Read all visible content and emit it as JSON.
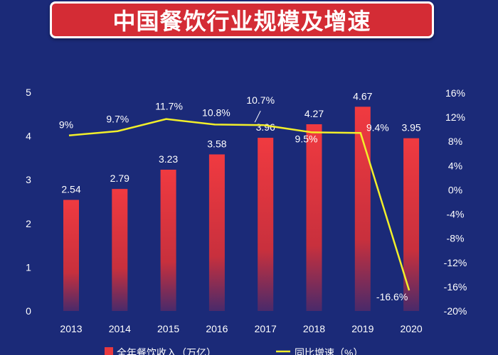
{
  "title": "中国餐饮行业规模及增速",
  "colors": {
    "background": "#1b2a78",
    "bar": "#e8393f",
    "line": "#f2ef2a",
    "title_box": "#d42c35"
  },
  "chart_data": {
    "type": "bar",
    "categories": [
      "2013",
      "2014",
      "2015",
      "2016",
      "2017",
      "2018",
      "2019",
      "2020"
    ],
    "series": [
      {
        "name": "全年餐饮收入（万亿）",
        "type": "bar",
        "axis": "left",
        "values": [
          2.54,
          2.79,
          3.23,
          3.58,
          3.96,
          4.27,
          4.67,
          3.95
        ],
        "labels": [
          "2.54",
          "2.79",
          "3.23",
          "3.58",
          "3.96",
          "4.27",
          "4.67",
          "3.95"
        ]
      },
      {
        "name": "同比增速（%）",
        "type": "line",
        "axis": "right",
        "values": [
          9,
          9.7,
          11.7,
          10.8,
          10.7,
          9.5,
          9.4,
          -16.6
        ],
        "labels": [
          "9%",
          "9.7%",
          "11.7%",
          "10.8%",
          "10.7%",
          "9.5%",
          "9.4%",
          "-16.6%"
        ]
      }
    ],
    "left_axis": {
      "ylim": [
        0,
        5
      ],
      "ticks": [
        "0",
        "1",
        "2",
        "3",
        "4",
        "5"
      ]
    },
    "right_axis": {
      "ylim": [
        -20,
        16
      ],
      "ticks": [
        "16%",
        "12%",
        "8%",
        "4%",
        "0%",
        "-4%",
        "-8%",
        "-12%",
        "-16%",
        "-20%"
      ]
    },
    "grid": false,
    "legend_position": "bottom"
  }
}
